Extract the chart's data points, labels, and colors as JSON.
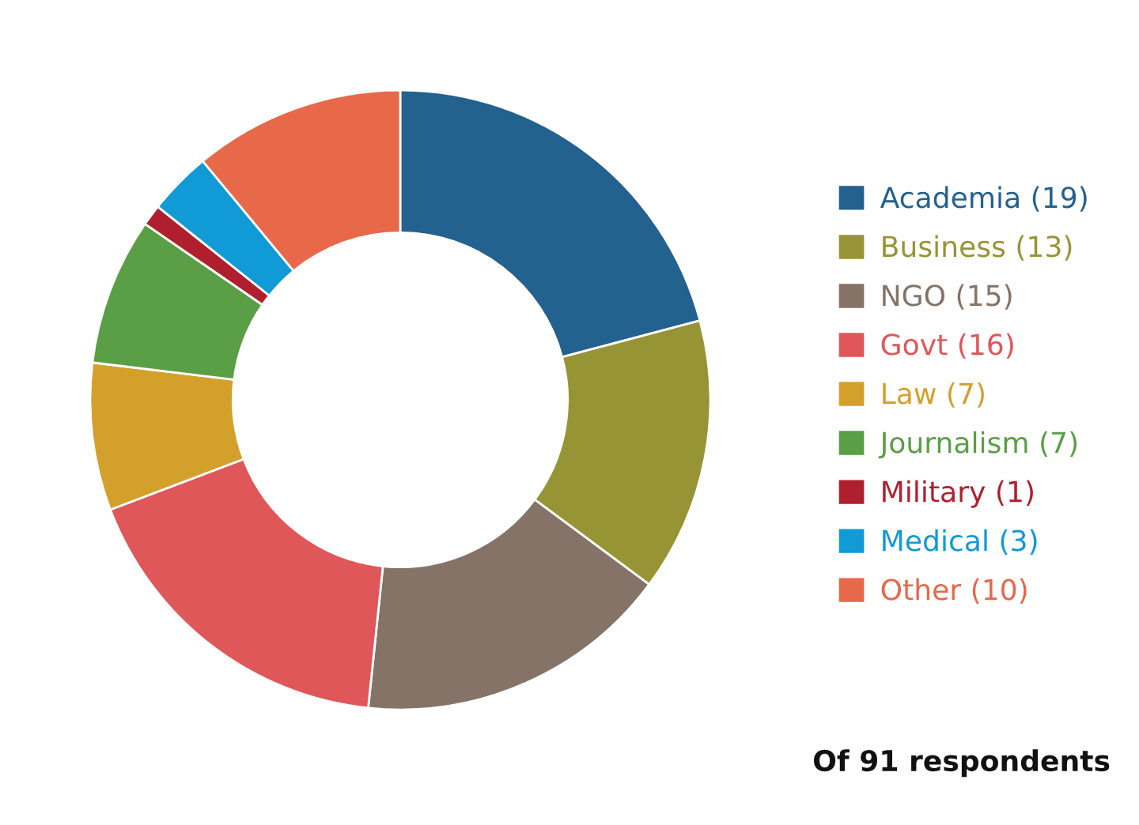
{
  "chart_data": {
    "type": "donut",
    "categories": [
      "Academia (19)",
      "Business (13)",
      "NGO (15)",
      "Govt (16)",
      "Law (7)",
      "Journalism (7)",
      "Military (1)",
      "Medical (3)",
      "Other (10)"
    ],
    "values": [
      19,
      13,
      15,
      16,
      7,
      7,
      1,
      3,
      10
    ],
    "colors": [
      "#23618e",
      "#979436",
      "#857368",
      "#e05759",
      "#d4a02c",
      "#5a9e45",
      "#b01f2e",
      "#109ad6",
      "#e8684a"
    ],
    "legend": "right",
    "annotations": [
      "Of 91 respondents"
    ]
  }
}
